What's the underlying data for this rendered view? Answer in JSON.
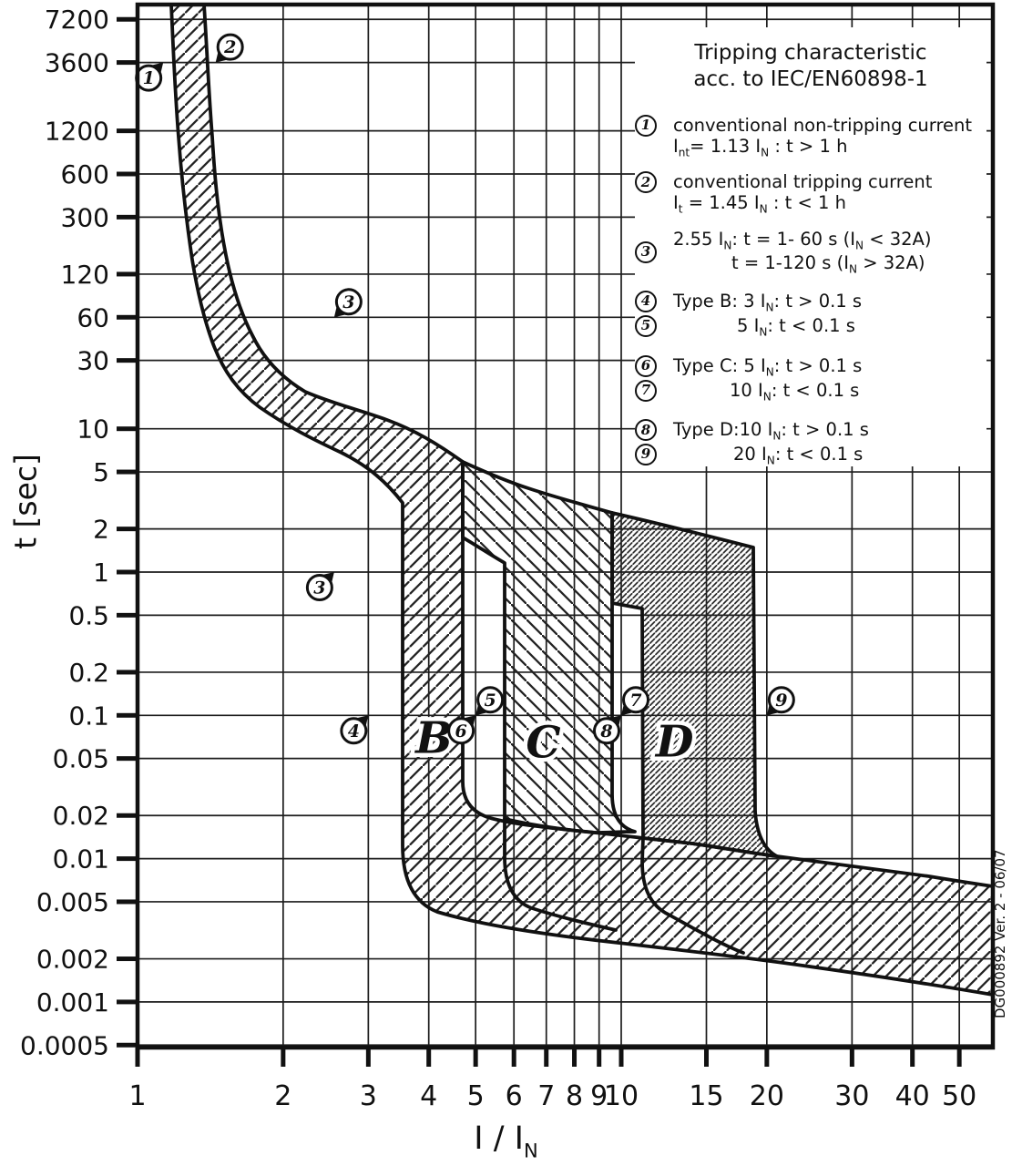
{
  "colors": {
    "ink": "#111111",
    "grid": "#1c1c1c",
    "background": "#ffffff",
    "hatch": "#222222"
  },
  "legend": {
    "title_line1": "Tripping characteristic",
    "title_line2": "acc. to IEC/EN60898-1",
    "items": [
      {
        "num": "1",
        "gap_after": 14,
        "lines": [
          {
            "indent": 0,
            "parts": [
              {
                "t": "conventional non-tripping current"
              }
            ]
          },
          {
            "indent": 0,
            "parts": [
              {
                "t": "I"
              },
              {
                "t": "nt",
                "s": 1
              },
              {
                "t": "= 1.13 I"
              },
              {
                "t": "N",
                "s": 1
              },
              {
                "t": " : t > 1 h"
              }
            ]
          }
        ]
      },
      {
        "num": "2",
        "gap_after": 14,
        "lines": [
          {
            "indent": 0,
            "parts": [
              {
                "t": "conventional tripping current"
              }
            ]
          },
          {
            "indent": 0,
            "parts": [
              {
                "t": "I"
              },
              {
                "t": "t",
                "s": 1
              },
              {
                "t": " = 1.45 I"
              },
              {
                "t": "N",
                "s": 1
              },
              {
                "t": " : t < 1 h"
              }
            ]
          }
        ]
      },
      {
        "num": "3",
        "num_middle": true,
        "gap_after": 16,
        "lines": [
          {
            "indent": 0,
            "parts": [
              {
                "t": "2.55 I"
              },
              {
                "t": "N",
                "s": 1
              },
              {
                "t": ": t = 1- 60 s (I"
              },
              {
                "t": "N",
                "s": 1
              },
              {
                "t": " < 32A)"
              }
            ]
          },
          {
            "indent": 64,
            "parts": [
              {
                "t": "t = 1-120 s (I"
              },
              {
                "t": "N",
                "s": 1
              },
              {
                "t": " > 32A)"
              }
            ]
          }
        ]
      },
      {
        "num": "4",
        "gap_after": 1,
        "lines": [
          {
            "indent": 0,
            "parts": [
              {
                "t": "Type B: 3 I"
              },
              {
                "t": "N",
                "s": 1
              },
              {
                "t": ": t > 0.1 s"
              }
            ]
          }
        ]
      },
      {
        "num": "5",
        "gap_after": 18,
        "lines": [
          {
            "indent": 70,
            "parts": [
              {
                "t": "5 I"
              },
              {
                "t": "N",
                "s": 1
              },
              {
                "t": ": t < 0.1 s"
              }
            ]
          }
        ]
      },
      {
        "num": "6",
        "gap_after": 1,
        "lines": [
          {
            "indent": 0,
            "parts": [
              {
                "t": "Type C: 5 I"
              },
              {
                "t": "N",
                "s": 1
              },
              {
                "t": ": t > 0.1 s"
              }
            ]
          }
        ]
      },
      {
        "num": "7",
        "gap_after": 18,
        "lines": [
          {
            "indent": 62,
            "parts": [
              {
                "t": "10 I"
              },
              {
                "t": "N",
                "s": 1
              },
              {
                "t": ": t < 0.1 s"
              }
            ]
          }
        ]
      },
      {
        "num": "8",
        "gap_after": 1,
        "lines": [
          {
            "indent": 0,
            "parts": [
              {
                "t": "Type D:10 I"
              },
              {
                "t": "N",
                "s": 1
              },
              {
                "t": ": t > 0.1 s"
              }
            ]
          }
        ]
      },
      {
        "num": "9",
        "gap_after": 0,
        "lines": [
          {
            "indent": 66,
            "parts": [
              {
                "t": "20 I"
              },
              {
                "t": "N",
                "s": 1
              },
              {
                "t": ": t < 0.1 s"
              }
            ]
          }
        ]
      }
    ]
  },
  "axes": {
    "y_label": "t [sec]",
    "x_label_main": "I / I",
    "x_label_sub": "N"
  },
  "watermark": "DG000892 Ver. 2 - 06/07",
  "chart_data": {
    "type": "line",
    "title": "Tripping characteristic acc. to IEC/EN60898-1",
    "xlabel": "I / IN",
    "ylabel": "t [sec]",
    "x_scale": "log",
    "y_scale": "log",
    "xlim": [
      1,
      56
    ],
    "ylim": [
      0.0005,
      9000
    ],
    "grid": true,
    "x_ticks": [
      "1",
      "2",
      "3",
      "4",
      "5",
      "6",
      "7",
      "8",
      "9",
      "10",
      "15",
      "20",
      "30",
      "40",
      "50"
    ],
    "y_ticks": [
      "7200",
      "3600",
      "1200",
      "600",
      "300",
      "120",
      "60",
      "30",
      "10",
      "5",
      "2",
      "1",
      "0.5",
      "0.2",
      "0.1",
      "0.05",
      "0.02",
      "0.01",
      "0.005",
      "0.002",
      "0.001",
      "0.0005"
    ],
    "standard_points": [
      {
        "id": "1",
        "I": 1.13,
        "t": 3600,
        "desc": "conventional non-tripping current"
      },
      {
        "id": "2",
        "I": 1.45,
        "t": 3600,
        "desc": "conventional tripping current"
      },
      {
        "id": "3",
        "I": 2.55,
        "t": 60,
        "desc": "2.55 IN upper limit"
      },
      {
        "id": "3",
        "I": 2.55,
        "t": 1,
        "desc": "2.55 IN lower limit"
      },
      {
        "id": "4",
        "I": 3,
        "t": 0.1,
        "desc": "Type B lower magnetic limit"
      },
      {
        "id": "5",
        "I": 5,
        "t": 0.1,
        "desc": "Type B upper magnetic limit"
      },
      {
        "id": "6",
        "I": 5,
        "t": 0.1,
        "desc": "Type C lower magnetic limit"
      },
      {
        "id": "7",
        "I": 10,
        "t": 0.1,
        "desc": "Type C upper magnetic limit"
      },
      {
        "id": "8",
        "I": 10,
        "t": 0.1,
        "desc": "Type D lower magnetic limit"
      },
      {
        "id": "9",
        "I": 20,
        "t": 0.1,
        "desc": "Type D upper magnetic limit"
      }
    ],
    "markers": [
      {
        "n": "1",
        "I": 1.13,
        "t": 3600,
        "dir": "ne"
      },
      {
        "n": "2",
        "I": 1.45,
        "t": 3600,
        "dir": "sw"
      },
      {
        "n": "3",
        "I": 2.55,
        "t": 60,
        "dir": "sw"
      },
      {
        "n": "3",
        "I": 2.55,
        "t": 1,
        "dir": "ne"
      },
      {
        "n": "4",
        "I": 3,
        "t": 0.1,
        "dir": "ne"
      },
      {
        "n": "5",
        "I": 5,
        "t": 0.1,
        "dir": "sw"
      },
      {
        "n": "6",
        "I": 5,
        "t": 0.1,
        "dir": "ne"
      },
      {
        "n": "7",
        "I": 10,
        "t": 0.1,
        "dir": "sw"
      },
      {
        "n": "8",
        "I": 10,
        "t": 0.1,
        "dir": "ne"
      },
      {
        "n": "9",
        "I": 20,
        "t": 0.1,
        "dir": "sw"
      }
    ],
    "zone_labels": [
      {
        "label": "B",
        "I": 4.1,
        "t": 0.07
      },
      {
        "label": "C",
        "I": 6.9,
        "t": 0.065
      },
      {
        "label": "D",
        "I": 12.9,
        "t": 0.066
      }
    ],
    "standard_bands": {
      "thermal_non_trip_I": 1.13,
      "thermal_trip_I": 1.45,
      "B_magnetic_range": [
        3,
        5
      ],
      "C_magnetic_range": [
        5,
        10
      ],
      "D_magnetic_range": [
        10,
        20
      ]
    },
    "drawn_product_bands": {
      "thermal_top_I_range": [
        1.17,
        1.37
      ],
      "B_I_range": [
        3.5,
        4.7
      ],
      "C_I_range": [
        5.7,
        9.6
      ],
      "D_I_range": [
        11.1,
        18.8
      ],
      "instantaneous_band_t_range_at_right_edge": [
        0.0011,
        0.006
      ]
    }
  }
}
